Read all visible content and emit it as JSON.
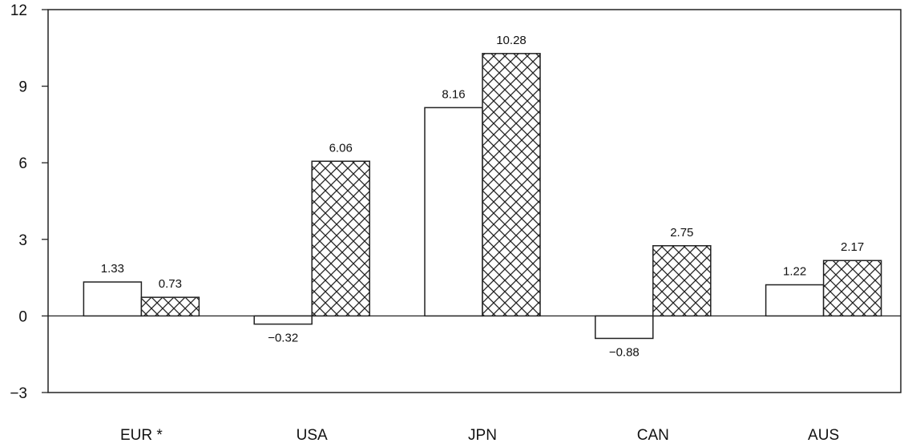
{
  "chart_data": {
    "type": "bar",
    "title": "",
    "xlabel": "",
    "ylabel": "",
    "categories": [
      "EUR *",
      "USA",
      "JPN",
      "CAN",
      "AUS"
    ],
    "ylim": [
      -3,
      12
    ],
    "yticks": [
      -3,
      0,
      3,
      6,
      9,
      12
    ],
    "ytick_labels": [
      "−3",
      "0",
      "3",
      "6",
      "9",
      "12"
    ],
    "grid": false,
    "legend": "none",
    "series": [
      {
        "values": [
          1.33,
          -0.32,
          8.16,
          -0.88,
          1.22
        ],
        "labels": [
          "1.33",
          "−0.32",
          "8.16",
          "−0.88",
          "1.22"
        ],
        "pattern": "plain"
      },
      {
        "values": [
          0.73,
          6.06,
          10.28,
          2.75,
          2.17
        ],
        "labels": [
          "0.73",
          "6.06",
          "10.28",
          "2.75",
          "2.17"
        ],
        "pattern": "crosshatch"
      }
    ],
    "colors": {
      "background": "#ffffff",
      "axis": "#222222",
      "bar_fill": "#ffffff",
      "bar_stroke": "#222222",
      "hatch": "#222222"
    }
  }
}
